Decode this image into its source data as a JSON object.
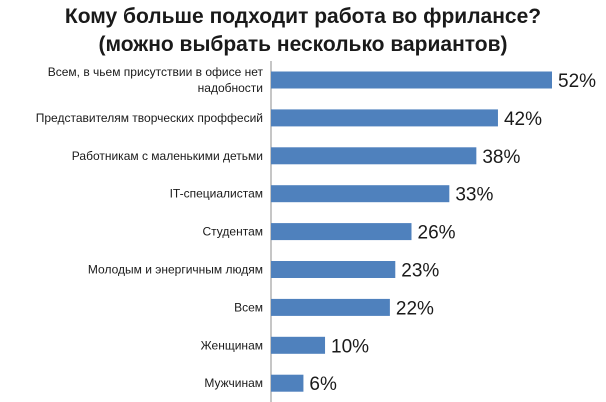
{
  "chart_data": {
    "type": "bar",
    "orientation": "horizontal",
    "title": "Кому больше подходит работа во фриланce?",
    "subtitle": "(можно выбрать несколько вариантов)",
    "categories": [
      [
        "Всем, в чьем присутствии в офисе нет",
        "надобности"
      ],
      [
        "Представителям творческих проффесий"
      ],
      [
        "Работникам с маленькими детьми"
      ],
      [
        "IT-специалистам"
      ],
      [
        "Студентам"
      ],
      [
        "Молодым и энергичным людям"
      ],
      [
        "Всем"
      ],
      [
        "Женщинам"
      ],
      [
        "Мужчинам"
      ]
    ],
    "values": [
      52,
      42,
      38,
      33,
      26,
      23,
      22,
      10,
      6
    ],
    "value_labels": [
      "52%",
      "42%",
      "38%",
      "33%",
      "26%",
      "23%",
      "22%",
      "10%",
      "6%"
    ],
    "bar_color": "#4f81bd",
    "grid": false,
    "legend": "none"
  }
}
